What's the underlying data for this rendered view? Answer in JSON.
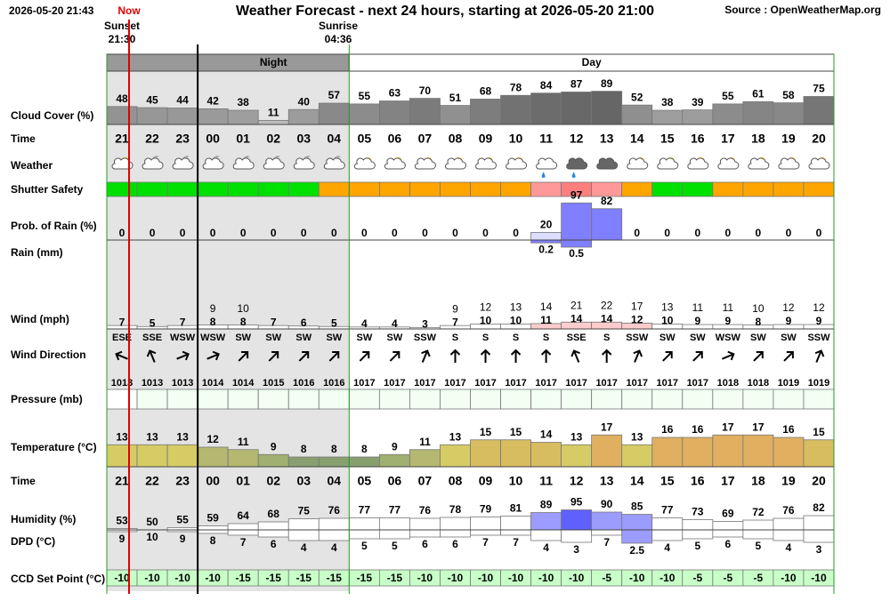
{
  "header": {
    "timestamp": "2026-05-20 21:43",
    "now": "Now",
    "title": "Weather Forecast - next 24 hours, starting at 2026-05-20 21:00",
    "source": "Source : OpenWeatherMap.org",
    "sunset": "Sunset",
    "sunset_time": "21:30",
    "sunrise": "Sunrise",
    "sunrise_time": "04:36",
    "night": "Night",
    "day": "Day"
  },
  "row_labels": {
    "cloud": "Cloud Cover (%)",
    "time": "Time",
    "weather": "Weather",
    "shutter": "Shutter Safety",
    "rain_prob": "Prob. of Rain (%)",
    "rain": "Rain (mm)",
    "wind": "Wind (mph)",
    "wind_dir": "Wind Direction",
    "pressure": "Pressure (mb)",
    "temp": "Temperature (°C)",
    "time2": "Time",
    "humidity": "Humidity (%)",
    "dpd": "DPD (°C)",
    "ccd": "CCD Set Point (°C)"
  },
  "hours": [
    "21",
    "22",
    "23",
    "00",
    "01",
    "02",
    "03",
    "04",
    "05",
    "06",
    "07",
    "08",
    "09",
    "10",
    "11",
    "12",
    "13",
    "14",
    "15",
    "16",
    "17",
    "18",
    "19",
    "20"
  ],
  "cloud": [
    48,
    45,
    44,
    42,
    38,
    11,
    40,
    57,
    55,
    63,
    70,
    51,
    68,
    78,
    84,
    87,
    89,
    52,
    38,
    39,
    55,
    61,
    58,
    75
  ],
  "weather": [
    "day",
    "night",
    "night",
    "night",
    "night",
    "night",
    "night",
    "night",
    "day",
    "day",
    "day",
    "day",
    "day",
    "day",
    "rain-light",
    "rain",
    "dark",
    "day",
    "day",
    "day",
    "day",
    "day",
    "day",
    "day"
  ],
  "shutter": [
    "#00e000",
    "#00e000",
    "#00e000",
    "#00e000",
    "#00e000",
    "#00e000",
    "#00e000",
    "#ffa500",
    "#ffa500",
    "#ffa500",
    "#ffa500",
    "#ffa500",
    "#ffa500",
    "#ffa500",
    "#ff9999",
    "#ff7f7f",
    "#ff9999",
    "#ffa500",
    "#00e000",
    "#00e000",
    "#ffa500",
    "#ffa500",
    "#ffa500",
    "#ffa500"
  ],
  "rain_prob": [
    0,
    0,
    0,
    0,
    0,
    0,
    0,
    0,
    0,
    0,
    0,
    0,
    0,
    0,
    20,
    97,
    82,
    0,
    0,
    0,
    0,
    0,
    0,
    0
  ],
  "rain": [
    null,
    null,
    null,
    null,
    null,
    null,
    null,
    null,
    null,
    null,
    null,
    null,
    null,
    null,
    0.2,
    0.5,
    null,
    null,
    null,
    null,
    null,
    null,
    null,
    null
  ],
  "wind": [
    7,
    5,
    7,
    8,
    8,
    7,
    6,
    5,
    4,
    4,
    3,
    7,
    10,
    10,
    11,
    14,
    14,
    12,
    10,
    9,
    9,
    8,
    9,
    9
  ],
  "gust": [
    null,
    null,
    null,
    9,
    10,
    null,
    null,
    null,
    null,
    null,
    null,
    9,
    12,
    13,
    14,
    21,
    22,
    17,
    13,
    11,
    11,
    10,
    12,
    12
  ],
  "wind_dir": [
    "ESE",
    "SSE",
    "WSW",
    "WSW",
    "SW",
    "SW",
    "SW",
    "SW",
    "SW",
    "SW",
    "SSW",
    "S",
    "S",
    "S",
    "S",
    "SSE",
    "S",
    "SSW",
    "SW",
    "SW",
    "WSW",
    "SW",
    "SW",
    "SSW"
  ],
  "pressure": [
    1013,
    1013,
    1013,
    1014,
    1014,
    1015,
    1016,
    1016,
    1017,
    1017,
    1017,
    1017,
    1017,
    1017,
    1017,
    1017,
    1017,
    1017,
    1017,
    1017,
    1018,
    1018,
    1019,
    1019
  ],
  "temp": [
    13,
    13,
    13,
    12,
    11,
    9,
    8,
    8,
    8,
    9,
    11,
    13,
    15,
    15,
    14,
    13,
    17,
    13,
    16,
    16,
    17,
    17,
    16,
    15
  ],
  "humidity": [
    53,
    50,
    55,
    59,
    64,
    68,
    75,
    76,
    77,
    77,
    76,
    78,
    79,
    81,
    89,
    95,
    90,
    85,
    77,
    73,
    69,
    72,
    76,
    82
  ],
  "dpd": [
    9,
    10,
    9,
    8,
    7,
    6,
    4,
    4,
    5,
    5,
    6,
    6,
    7,
    7,
    4,
    3,
    7,
    2.5,
    4,
    5,
    6,
    5,
    4,
    3
  ],
  "ccd": [
    -10,
    -10,
    -10,
    -10,
    -15,
    -15,
    -15,
    -15,
    -15,
    -15,
    -10,
    -10,
    -10,
    -10,
    -10,
    -10,
    -5,
    -10,
    -10,
    -5,
    -5,
    -5,
    -10,
    -10
  ]
}
